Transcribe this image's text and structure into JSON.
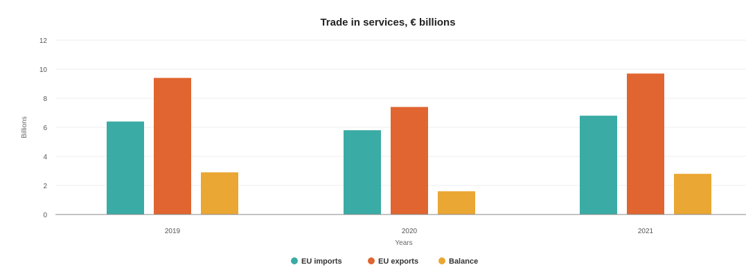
{
  "chart_data": {
    "type": "bar",
    "title": "Trade in services, € billions",
    "xlabel": "Years",
    "ylabel": "Billions",
    "categories": [
      "2019",
      "2020",
      "2021"
    ],
    "series": [
      {
        "name": "EU imports",
        "color": "#3aaba5",
        "values": [
          6.4,
          5.8,
          6.8
        ]
      },
      {
        "name": "EU exports",
        "color": "#e06530",
        "values": [
          9.4,
          7.4,
          9.7
        ]
      },
      {
        "name": "Balance",
        "color": "#eaa733",
        "values": [
          2.9,
          1.6,
          2.8
        ]
      }
    ],
    "ylim": [
      0,
      12
    ],
    "yticks": [
      "0",
      "2",
      "4",
      "6",
      "8",
      "10",
      "12"
    ],
    "grid": true,
    "legend_position": "bottom"
  }
}
